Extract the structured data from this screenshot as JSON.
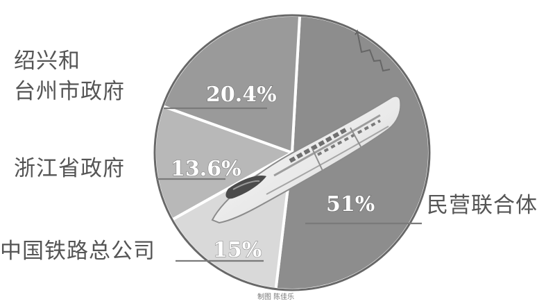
{
  "chart_data": {
    "type": "pie",
    "title": "",
    "slices": [
      {
        "label": "民营联合体",
        "value": 51,
        "display": "51%",
        "color": "#8d8d8d"
      },
      {
        "label": "中国铁路总公司",
        "value": 15,
        "display": "15%",
        "color": "#d9d9d9"
      },
      {
        "label": "浙江省政府",
        "value": 13.6,
        "display": "13.6%",
        "color": "#b8b8b8"
      },
      {
        "label": "绍兴和\n台州市政府",
        "value": 20.4,
        "display": "20.4%",
        "color": "#9a9a9a"
      }
    ]
  },
  "credit": "制图 陈佳乐",
  "illustration": "high-speed-train"
}
